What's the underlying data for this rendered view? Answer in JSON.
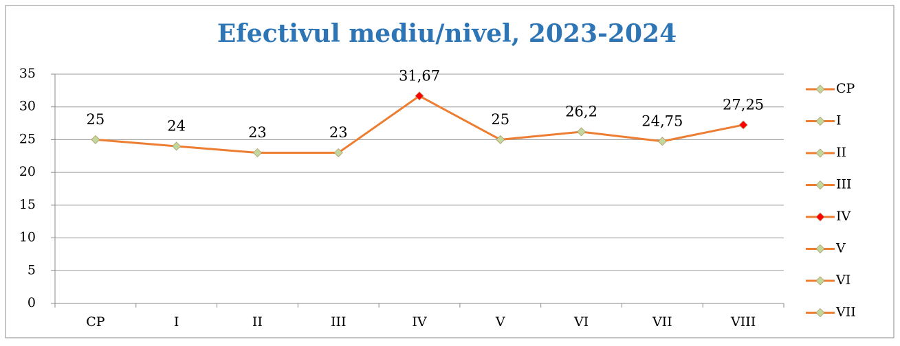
{
  "chart_data": {
    "type": "line",
    "title": "Efectivul mediu/nivel, 2023-2024",
    "categories": [
      "CP",
      "I",
      "II",
      "III",
      "IV",
      "V",
      "VI",
      "VII",
      "VIII"
    ],
    "values": [
      25,
      24,
      23,
      23,
      31.67,
      25,
      26.2,
      24.75,
      27.25
    ],
    "value_labels": [
      "25",
      "24",
      "23",
      "23",
      "31,67",
      "25",
      "26,2",
      "24,75",
      "27,25"
    ],
    "color": "#ed7d31",
    "marker_colors": [
      "#c3d69b",
      "#c3d69b",
      "#c3d69b",
      "#c3d69b",
      "#ff0000",
      "#c3d69b",
      "#c3d69b",
      "#c3d69b",
      "#ff0000"
    ],
    "legend_entries": [
      "CP",
      "I",
      "II",
      "III",
      "IV",
      "V",
      "VI",
      "VII"
    ],
    "ylim": [
      0,
      35
    ],
    "yticks": [
      0,
      5,
      10,
      15,
      20,
      25,
      30,
      35
    ],
    "grid": true,
    "legend": "right"
  }
}
